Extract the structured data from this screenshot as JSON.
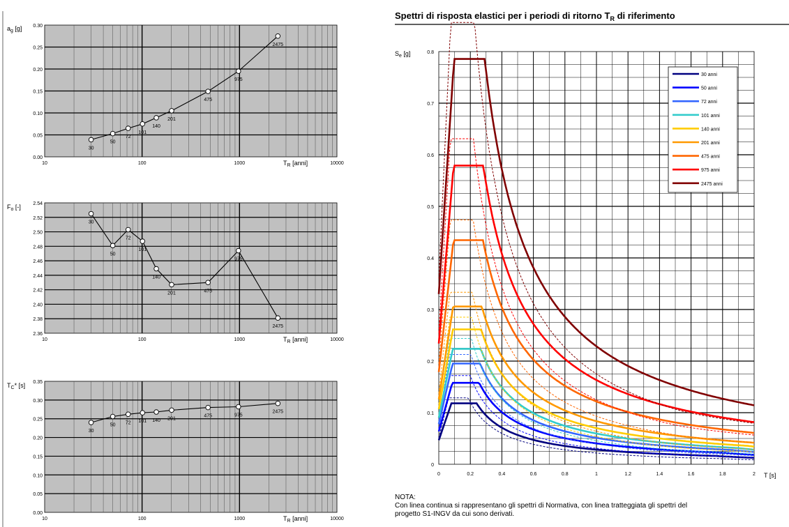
{
  "page": {
    "title_main": "Spettri di risposta elastici per i periodi di ritorno T",
    "title_sub": "R",
    "title_end": " di riferimento",
    "note_heading": "NOTA:",
    "note_line1": "Con linea continua si rappresentano gli spettri di Normativa, con linea tratteggiata gli spettri del",
    "note_line2": "progetto S1-INGV da cui sono derivati."
  },
  "colors": {
    "plot_bg": "#c0c0c0",
    "series": [
      "#000080",
      "#0000ff",
      "#3366ff",
      "#33cccc",
      "#ffcc00",
      "#ff9900",
      "#ff6600",
      "#ff0000",
      "#800000"
    ]
  },
  "chart_data": [
    {
      "type": "line",
      "id": "ag",
      "ylabel_main": "a",
      "ylabel_sub": "g",
      "ylabel_end": " [g]",
      "xlabel_main": "T",
      "xlabel_sub": "R",
      "xlabel_end": " [anni]",
      "xscale": "log",
      "xlim": [
        10,
        10000
      ],
      "xticks": [
        "10",
        "100",
        "1000",
        "10000"
      ],
      "ylim": [
        0,
        0.3
      ],
      "yticks": [
        "0.00",
        "0.05",
        "0.10",
        "0.15",
        "0.20",
        "0.25",
        "0.30"
      ],
      "x": [
        30,
        50,
        72,
        101,
        140,
        201,
        475,
        975,
        2475
      ],
      "y": [
        0.039,
        0.053,
        0.065,
        0.075,
        0.089,
        0.105,
        0.149,
        0.195,
        0.275
      ],
      "point_labels": [
        "30",
        "50",
        "72",
        "101",
        "140",
        "201",
        "475",
        "975",
        "2475"
      ],
      "grid": true
    },
    {
      "type": "line",
      "id": "fo",
      "ylabel_main": "F",
      "ylabel_sub": "o",
      "ylabel_end": " [-]",
      "xlabel_main": "T",
      "xlabel_sub": "R",
      "xlabel_end": " [anni]",
      "xscale": "log",
      "xlim": [
        10,
        10000
      ],
      "xticks": [
        "10",
        "100",
        "1000",
        "10000"
      ],
      "ylim": [
        2.36,
        2.54
      ],
      "yticks": [
        "2.36",
        "2.38",
        "2.40",
        "2.42",
        "2.44",
        "2.46",
        "2.48",
        "2.50",
        "2.52",
        "2.54"
      ],
      "x": [
        30,
        50,
        72,
        101,
        140,
        201,
        475,
        975,
        2475
      ],
      "y": [
        2.525,
        2.481,
        2.503,
        2.487,
        2.449,
        2.427,
        2.43,
        2.474,
        2.381
      ],
      "point_labels": [
        "30",
        "50",
        "72",
        "101",
        "140",
        "201",
        "475",
        "975",
        "2475"
      ],
      "grid": true
    },
    {
      "type": "line",
      "id": "tc",
      "ylabel_main": "T",
      "ylabel_sub": "C",
      "ylabel_end": "* [s]",
      "xlabel_main": "T",
      "xlabel_sub": "R",
      "xlabel_end": " [anni]",
      "xscale": "log",
      "xlim": [
        10,
        10000
      ],
      "xticks": [
        "10",
        "100",
        "1000",
        "10000"
      ],
      "ylim": [
        0,
        0.35
      ],
      "yticks": [
        "0.00",
        "0.05",
        "0.10",
        "0.15",
        "0.20",
        "0.25",
        "0.30",
        "0.35"
      ],
      "x": [
        30,
        50,
        72,
        101,
        140,
        201,
        475,
        975,
        2475
      ],
      "y": [
        0.24,
        0.256,
        0.262,
        0.266,
        0.268,
        0.273,
        0.28,
        0.282,
        0.291
      ],
      "point_labels": [
        "30",
        "50",
        "72",
        "101",
        "140",
        "201",
        "475",
        "975",
        "2475"
      ],
      "grid": true
    },
    {
      "type": "line",
      "id": "spectra",
      "ylabel_main": "S",
      "ylabel_sub": "e",
      "ylabel_end": " [g]",
      "xlabel": "T  [s]",
      "xlim": [
        0,
        2
      ],
      "xticks": [
        "0",
        "0.2",
        "0.4",
        "0.6",
        "0.8",
        "1",
        "1.2",
        "1.4",
        "1.6",
        "1.8",
        "2"
      ],
      "ylim": [
        0,
        0.8
      ],
      "yticks": [
        "0",
        "0.1",
        "0.2",
        "0.3",
        "0.4",
        "0.5",
        "0.6",
        "0.7",
        "0.8"
      ],
      "grid": true,
      "legend_position": "top-right",
      "series": [
        {
          "name": "30 anni",
          "ag": 0.039,
          "fo": 2.525,
          "tc": 0.24
        },
        {
          "name": "50 anni",
          "ag": 0.053,
          "fo": 2.481,
          "tc": 0.256
        },
        {
          "name": "72 anni",
          "ag": 0.065,
          "fo": 2.503,
          "tc": 0.262
        },
        {
          "name": "101 anni",
          "ag": 0.075,
          "fo": 2.487,
          "tc": 0.266
        },
        {
          "name": "140 anni",
          "ag": 0.089,
          "fo": 2.449,
          "tc": 0.268
        },
        {
          "name": "201 anni",
          "ag": 0.105,
          "fo": 2.427,
          "tc": 0.273
        },
        {
          "name": "475 anni",
          "ag": 0.149,
          "fo": 2.43,
          "tc": 0.28
        },
        {
          "name": "975 anni",
          "ag": 0.195,
          "fo": 2.474,
          "tc": 0.282
        },
        {
          "name": "2475 anni",
          "ag": 0.275,
          "fo": 2.381,
          "tc": 0.291
        }
      ]
    }
  ]
}
